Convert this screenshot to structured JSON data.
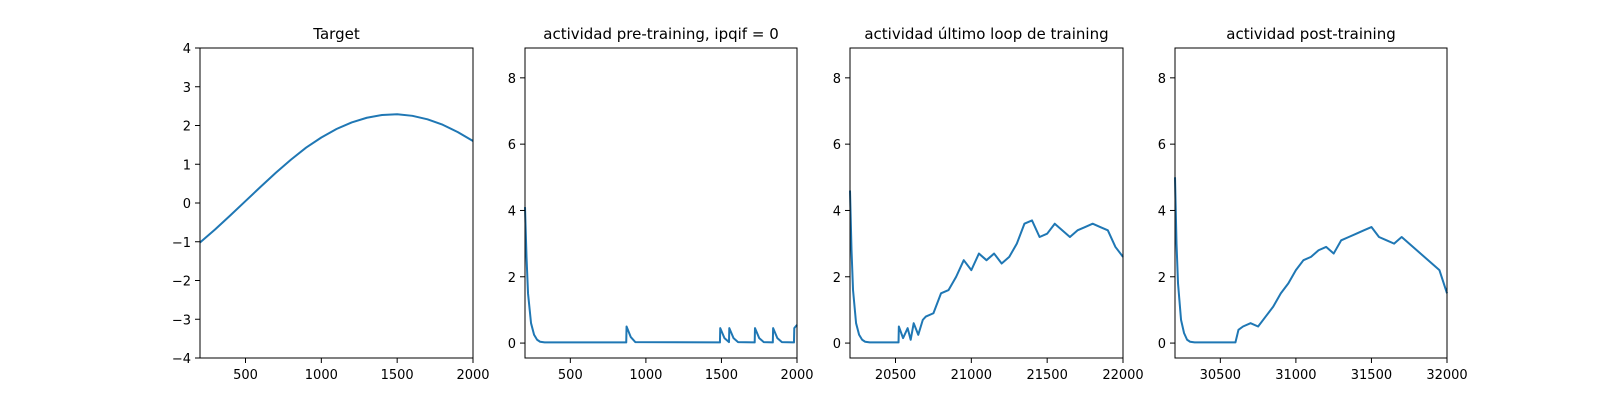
{
  "chart_data": [
    {
      "type": "line",
      "title": "Target",
      "xlim": [
        200,
        2000
      ],
      "ylim": [
        -4,
        4
      ],
      "xticks": [
        500,
        1000,
        1500,
        2000
      ],
      "yticks": [
        -4,
        -3,
        -2,
        -1,
        0,
        1,
        2,
        3,
        4
      ],
      "x": [
        200,
        300,
        400,
        500,
        600,
        700,
        800,
        900,
        1000,
        1100,
        1200,
        1300,
        1400,
        1500,
        1600,
        1700,
        1800,
        1900,
        2000
      ],
      "series": [
        {
          "values": [
            -1.02,
            -0.68,
            -0.32,
            0.05,
            0.42,
            0.78,
            1.12,
            1.43,
            1.69,
            1.91,
            2.08,
            2.2,
            2.27,
            2.29,
            2.25,
            2.16,
            2.02,
            1.83,
            1.6
          ],
          "color": "#1f77b4"
        }
      ]
    },
    {
      "type": "line",
      "title": "actividad pre-training, ipqif = 0",
      "xlim": [
        200,
        2000
      ],
      "ylim": [
        -0.45,
        8.9
      ],
      "xticks": [
        500,
        1000,
        1500,
        2000
      ],
      "yticks": [
        0,
        2,
        4,
        6,
        8
      ],
      "x": [
        200,
        210,
        220,
        240,
        260,
        280,
        300,
        330,
        870,
        872,
        900,
        930,
        1490,
        1492,
        1520,
        1550,
        1552,
        1580,
        1610,
        1720,
        1722,
        1750,
        1780,
        1840,
        1842,
        1870,
        1900,
        1980,
        1982,
        2000
      ],
      "series": [
        {
          "values": [
            4.1,
            2.6,
            1.5,
            0.6,
            0.25,
            0.1,
            0.04,
            0.02,
            0.02,
            0.5,
            0.18,
            0.03,
            0.02,
            0.45,
            0.15,
            0.03,
            0.45,
            0.15,
            0.03,
            0.02,
            0.45,
            0.15,
            0.03,
            0.02,
            0.45,
            0.15,
            0.03,
            0.02,
            0.45,
            0.55
          ],
          "color": "#1f77b4"
        }
      ]
    },
    {
      "type": "line",
      "title": "actividad último loop de training",
      "xlim": [
        20200,
        22000
      ],
      "ylim": [
        -0.45,
        8.9
      ],
      "xticks": [
        20500,
        21000,
        21500,
        22000
      ],
      "yticks": [
        0,
        2,
        4,
        6,
        8
      ],
      "x": [
        20200,
        20210,
        20220,
        20240,
        20260,
        20280,
        20300,
        20330,
        20520,
        20522,
        20550,
        20580,
        20600,
        20620,
        20650,
        20680,
        20700,
        20750,
        20800,
        20850,
        20900,
        20950,
        21000,
        21050,
        21100,
        21150,
        21200,
        21250,
        21300,
        21350,
        21400,
        21450,
        21500,
        21550,
        21600,
        21650,
        21700,
        21750,
        21800,
        21850,
        21900,
        21950,
        22000
      ],
      "series": [
        {
          "values": [
            4.6,
            2.8,
            1.6,
            0.6,
            0.25,
            0.1,
            0.04,
            0.02,
            0.02,
            0.5,
            0.15,
            0.45,
            0.1,
            0.6,
            0.25,
            0.7,
            0.8,
            0.9,
            1.5,
            1.6,
            2.0,
            2.5,
            2.2,
            2.7,
            2.5,
            2.7,
            2.4,
            2.6,
            3.0,
            3.6,
            3.7,
            3.2,
            3.3,
            3.6,
            3.4,
            3.2,
            3.4,
            3.5,
            3.6,
            3.5,
            3.4,
            2.9,
            2.6
          ],
          "color": "#1f77b4"
        }
      ]
    },
    {
      "type": "line",
      "title": "actividad post-training",
      "xlim": [
        30200,
        32000
      ],
      "ylim": [
        -0.45,
        8.9
      ],
      "xticks": [
        30500,
        31000,
        31500,
        32000
      ],
      "yticks": [
        0,
        2,
        4,
        6,
        8
      ],
      "x": [
        30200,
        30210,
        30220,
        30240,
        30260,
        30280,
        30300,
        30330,
        30600,
        30620,
        30650,
        30700,
        30750,
        30800,
        30850,
        30900,
        30950,
        31000,
        31050,
        31100,
        31150,
        31200,
        31250,
        31300,
        31350,
        31400,
        31450,
        31500,
        31550,
        31600,
        31650,
        31700,
        31750,
        31800,
        31850,
        31900,
        31950,
        32000
      ],
      "series": [
        {
          "values": [
            5.0,
            3.0,
            1.8,
            0.7,
            0.3,
            0.1,
            0.04,
            0.02,
            0.02,
            0.4,
            0.5,
            0.6,
            0.5,
            0.8,
            1.1,
            1.5,
            1.8,
            2.2,
            2.5,
            2.6,
            2.8,
            2.9,
            2.7,
            3.1,
            3.2,
            3.3,
            3.4,
            3.5,
            3.2,
            3.1,
            3.0,
            3.2,
            3.0,
            2.8,
            2.6,
            2.4,
            2.2,
            1.5
          ],
          "color": "#1f77b4"
        }
      ]
    }
  ]
}
